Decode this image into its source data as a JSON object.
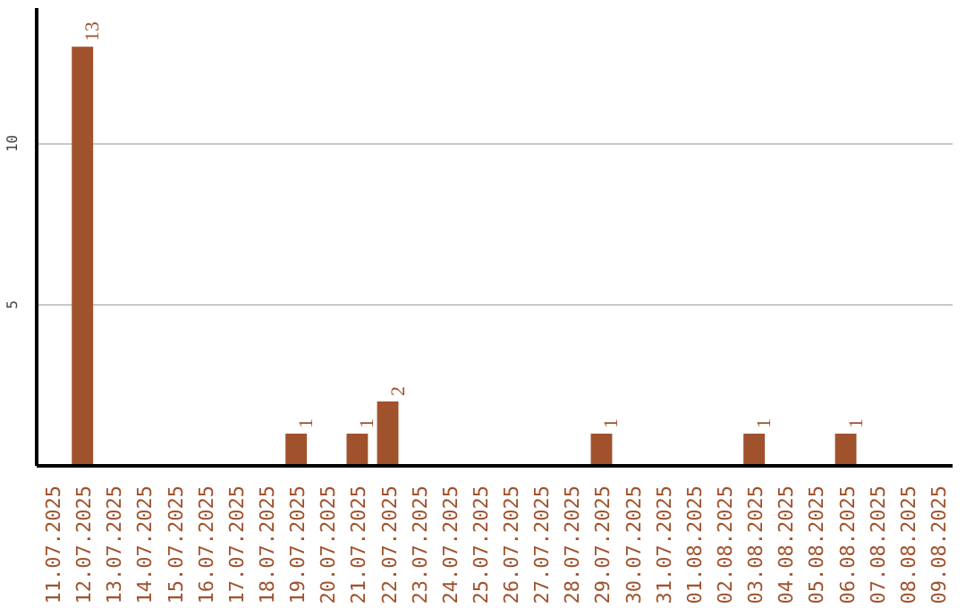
{
  "chart_data": {
    "type": "bar",
    "categories": [
      "11.07.2025",
      "12.07.2025",
      "13.07.2025",
      "14.07.2025",
      "15.07.2025",
      "16.07.2025",
      "17.07.2025",
      "18.07.2025",
      "19.07.2025",
      "20.07.2025",
      "21.07.2025",
      "22.07.2025",
      "23.07.2025",
      "24.07.2025",
      "25.07.2025",
      "26.07.2025",
      "27.07.2025",
      "28.07.2025",
      "29.07.2025",
      "30.07.2025",
      "31.07.2025",
      "01.08.2025",
      "02.08.2025",
      "03.08.2025",
      "04.08.2025",
      "05.08.2025",
      "06.08.2025",
      "07.08.2025",
      "08.08.2025",
      "09.08.2025"
    ],
    "values": [
      0,
      13,
      0,
      0,
      0,
      0,
      0,
      0,
      1,
      0,
      1,
      2,
      0,
      0,
      0,
      0,
      0,
      0,
      1,
      0,
      0,
      0,
      0,
      1,
      0,
      0,
      1,
      0,
      0,
      0
    ],
    "value_labels": [
      null,
      "13",
      null,
      null,
      null,
      null,
      null,
      null,
      "1",
      null,
      "1",
      "2",
      null,
      null,
      null,
      null,
      null,
      null,
      "1",
      null,
      null,
      null,
      null,
      "1",
      null,
      null,
      "1",
      null,
      null,
      null
    ],
    "color": "#a0522d",
    "ylim": [
      0,
      14.2
    ],
    "yticks": [
      5,
      10
    ],
    "grid": "y"
  }
}
